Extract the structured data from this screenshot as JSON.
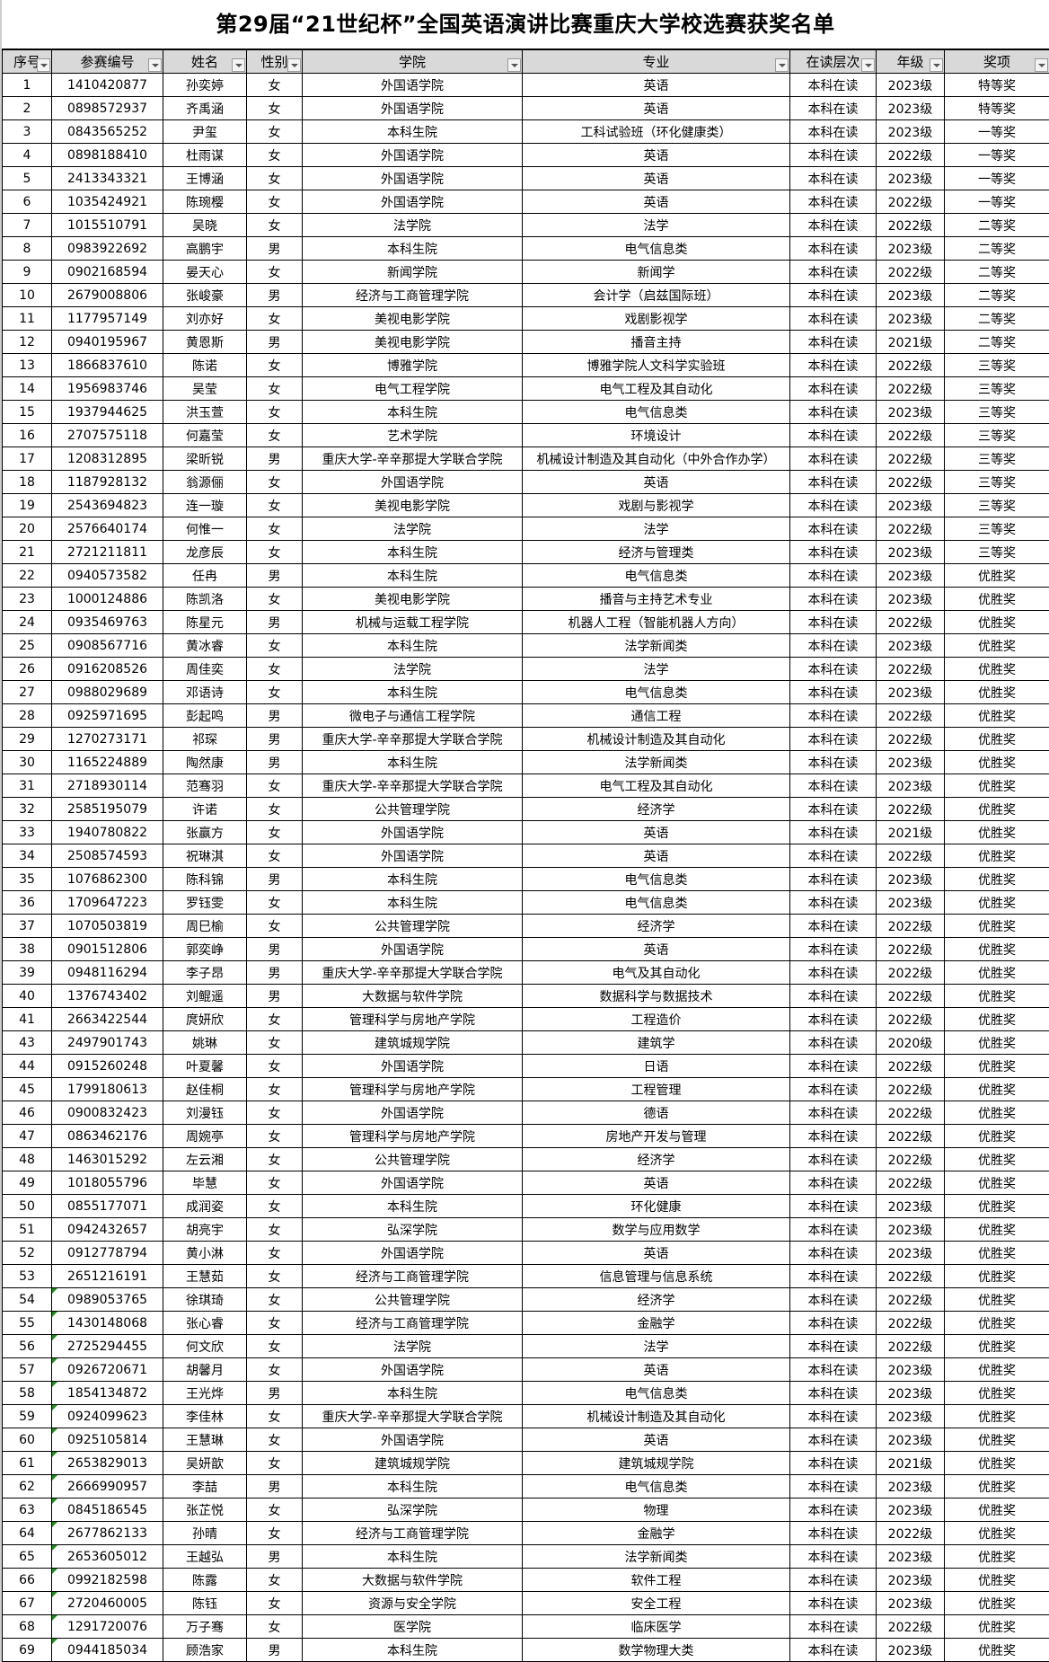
{
  "title": "第29届“21世纪杯”全国英语演讲比赛重庆大学校选赛获奖名单",
  "columns": [
    "序号",
    "参赛编号",
    "姓名",
    "性别",
    "学院",
    "专业",
    "在读层次",
    "年级",
    "奖项"
  ],
  "header_filter_icon": "dropdown-filter-icon",
  "flag_color": "#1a8f1a",
  "flagged_from_seq": "54",
  "rows": [
    [
      "1",
      "1410420877",
      "孙奕婷",
      "女",
      "外国语学院",
      "英语",
      "本科在读",
      "2023级",
      "特等奖"
    ],
    [
      "2",
      "0898572937",
      "齐禹涵",
      "女",
      "外国语学院",
      "英语",
      "本科在读",
      "2023级",
      "特等奖"
    ],
    [
      "3",
      "0843565252",
      "尹玺",
      "女",
      "本科生院",
      "工科试验班（环化健康类）",
      "本科在读",
      "2023级",
      "一等奖"
    ],
    [
      "4",
      "0898188410",
      "杜雨谋",
      "女",
      "外国语学院",
      "英语",
      "本科在读",
      "2022级",
      "一等奖"
    ],
    [
      "5",
      "2413343321",
      "王博涵",
      "女",
      "外国语学院",
      "英语",
      "本科在读",
      "2023级",
      "一等奖"
    ],
    [
      "6",
      "1035424921",
      "陈琬樱",
      "女",
      "外国语学院",
      "英语",
      "本科在读",
      "2022级",
      "一等奖"
    ],
    [
      "7",
      "1015510791",
      "吴晓",
      "女",
      "法学院",
      "法学",
      "本科在读",
      "2022级",
      "二等奖"
    ],
    [
      "8",
      "0983922692",
      "高鹏宇",
      "男",
      "本科生院",
      "电气信息类",
      "本科在读",
      "2023级",
      "二等奖"
    ],
    [
      "9",
      "0902168594",
      "晏天心",
      "女",
      "新闻学院",
      "新闻学",
      "本科在读",
      "2022级",
      "二等奖"
    ],
    [
      "10",
      "2679008806",
      "张峻豪",
      "男",
      "经济与工商管理学院",
      "会计学（启兹国际班）",
      "本科在读",
      "2023级",
      "二等奖"
    ],
    [
      "11",
      "1177957149",
      "刘亦好",
      "女",
      "美视电影学院",
      "戏剧影视学",
      "本科在读",
      "2023级",
      "二等奖"
    ],
    [
      "12",
      "0940195967",
      "黄恩斯",
      "男",
      "美视电影学院",
      "播音主持",
      "本科在读",
      "2021级",
      "二等奖"
    ],
    [
      "13",
      "1866837610",
      "陈诺",
      "女",
      "博雅学院",
      "博雅学院人文科学实验班",
      "本科在读",
      "2022级",
      "三等奖"
    ],
    [
      "14",
      "1956983746",
      "吴莹",
      "女",
      "电气工程学院",
      "电气工程及其自动化",
      "本科在读",
      "2022级",
      "三等奖"
    ],
    [
      "15",
      "1937944625",
      "洪玉萱",
      "女",
      "本科生院",
      "电气信息类",
      "本科在读",
      "2023级",
      "三等奖"
    ],
    [
      "16",
      "2707575118",
      "何嘉莹",
      "女",
      "艺术学院",
      "环境设计",
      "本科在读",
      "2022级",
      "三等奖"
    ],
    [
      "17",
      "1208312895",
      "梁昕锐",
      "男",
      "重庆大学-辛辛那提大学联合学院",
      "机械设计制造及其自动化（中外合作办学）",
      "本科在读",
      "2022级",
      "三等奖"
    ],
    [
      "18",
      "1187928132",
      "翁源俪",
      "女",
      "外国语学院",
      "英语",
      "本科在读",
      "2022级",
      "三等奖"
    ],
    [
      "19",
      "2543694823",
      "连一璇",
      "女",
      "美视电影学院",
      "戏剧与影视学",
      "本科在读",
      "2023级",
      "三等奖"
    ],
    [
      "20",
      "2576640174",
      "何惟一",
      "女",
      "法学院",
      "法学",
      "本科在读",
      "2022级",
      "三等奖"
    ],
    [
      "21",
      "2721211811",
      "龙彦辰",
      "女",
      "本科生院",
      "经济与管理类",
      "本科在读",
      "2023级",
      "三等奖"
    ],
    [
      "22",
      "0940573582",
      "任冉",
      "男",
      "本科生院",
      "电气信息类",
      "本科在读",
      "2023级",
      "优胜奖"
    ],
    [
      "23",
      "1000124886",
      "陈凯洛",
      "女",
      "美视电影学院",
      "播音与主持艺术专业",
      "本科在读",
      "2023级",
      "优胜奖"
    ],
    [
      "24",
      "0935469763",
      "陈星元",
      "男",
      "机械与运载工程学院",
      "机器人工程（智能机器人方向）",
      "本科在读",
      "2022级",
      "优胜奖"
    ],
    [
      "25",
      "0908567716",
      "黄冰睿",
      "女",
      "本科生院",
      "法学新闻类",
      "本科在读",
      "2023级",
      "优胜奖"
    ],
    [
      "26",
      "0916208526",
      "周佳奕",
      "女",
      "法学院",
      "法学",
      "本科在读",
      "2022级",
      "优胜奖"
    ],
    [
      "27",
      "0988029689",
      "邓语诗",
      "女",
      "本科生院",
      "电气信息类",
      "本科在读",
      "2023级",
      "优胜奖"
    ],
    [
      "28",
      "0925971695",
      "彭起鸣",
      "男",
      "微电子与通信工程学院",
      "通信工程",
      "本科在读",
      "2022级",
      "优胜奖"
    ],
    [
      "29",
      "1270273171",
      "祁琛",
      "男",
      "重庆大学-辛辛那提大学联合学院",
      "机械设计制造及其自动化",
      "本科在读",
      "2022级",
      "优胜奖"
    ],
    [
      "30",
      "1165224889",
      "陶然康",
      "男",
      "本科生院",
      "法学新闻类",
      "本科在读",
      "2023级",
      "优胜奖"
    ],
    [
      "31",
      "2718930114",
      "范骞羽",
      "女",
      "重庆大学-辛辛那提大学联合学院",
      "电气工程及其自动化",
      "本科在读",
      "2023级",
      "优胜奖"
    ],
    [
      "32",
      "2585195079",
      "许诺",
      "女",
      "公共管理学院",
      "经济学",
      "本科在读",
      "2022级",
      "优胜奖"
    ],
    [
      "33",
      "1940780822",
      "张赢方",
      "女",
      "外国语学院",
      "英语",
      "本科在读",
      "2021级",
      "优胜奖"
    ],
    [
      "34",
      "2508574593",
      "祝琳淇",
      "女",
      "外国语学院",
      "英语",
      "本科在读",
      "2022级",
      "优胜奖"
    ],
    [
      "35",
      "1076862300",
      "陈科锦",
      "男",
      "本科生院",
      "电气信息类",
      "本科在读",
      "2023级",
      "优胜奖"
    ],
    [
      "36",
      "1709647223",
      "罗钰雯",
      "女",
      "本科生院",
      "电气信息类",
      "本科在读",
      "2023级",
      "优胜奖"
    ],
    [
      "37",
      "1070503819",
      "周巳榆",
      "女",
      "公共管理学院",
      "经济学",
      "本科在读",
      "2022级",
      "优胜奖"
    ],
    [
      "38",
      "0901512806",
      "郭奕峥",
      "男",
      "外国语学院",
      "英语",
      "本科在读",
      "2022级",
      "优胜奖"
    ],
    [
      "39",
      "0948116294",
      "李子昂",
      "男",
      "重庆大学-辛辛那提大学联合学院",
      "电气及其自动化",
      "本科在读",
      "2022级",
      "优胜奖"
    ],
    [
      "40",
      "1376743402",
      "刘鲲遥",
      "男",
      "大数据与软件学院",
      "数据科学与数据技术",
      "本科在读",
      "2022级",
      "优胜奖"
    ],
    [
      "41",
      "2663422544",
      "庹妍欣",
      "女",
      "管理科学与房地产学院",
      "工程造价",
      "本科在读",
      "2022级",
      "优胜奖"
    ],
    [
      "43",
      "2497901743",
      "姚琳",
      "女",
      "建筑城规学院",
      "建筑学",
      "本科在读",
      "2020级",
      "优胜奖"
    ],
    [
      "44",
      "0915260248",
      "叶夏馨",
      "女",
      "外国语学院",
      "日语",
      "本科在读",
      "2022级",
      "优胜奖"
    ],
    [
      "45",
      "1799180613",
      "赵佳桐",
      "女",
      "管理科学与房地产学院",
      "工程管理",
      "本科在读",
      "2022级",
      "优胜奖"
    ],
    [
      "46",
      "0900832423",
      "刘漫钰",
      "女",
      "外国语学院",
      "德语",
      "本科在读",
      "2022级",
      "优胜奖"
    ],
    [
      "47",
      "0863462176",
      "周婉亭",
      "女",
      "管理科学与房地产学院",
      "房地产开发与管理",
      "本科在读",
      "2022级",
      "优胜奖"
    ],
    [
      "48",
      "1463015292",
      "左云湘",
      "女",
      "公共管理学院",
      "经济学",
      "本科在读",
      "2022级",
      "优胜奖"
    ],
    [
      "49",
      "1018055796",
      "毕慧",
      "女",
      "外国语学院",
      "英语",
      "本科在读",
      "2022级",
      "优胜奖"
    ],
    [
      "50",
      "0855177071",
      "成润姿",
      "女",
      "本科生院",
      "环化健康",
      "本科在读",
      "2023级",
      "优胜奖"
    ],
    [
      "51",
      "0942432657",
      "胡亮宇",
      "女",
      "弘深学院",
      "数学与应用数学",
      "本科在读",
      "2023级",
      "优胜奖"
    ],
    [
      "52",
      "0912778794",
      "黄小淋",
      "女",
      "外国语学院",
      "英语",
      "本科在读",
      "2023级",
      "优胜奖"
    ],
    [
      "53",
      "2651216191",
      "王慧茹",
      "女",
      "经济与工商管理学院",
      "信息管理与信息系统",
      "本科在读",
      "2022级",
      "优胜奖"
    ],
    [
      "54",
      "0989053765",
      "徐琪琦",
      "女",
      "公共管理学院",
      "经济学",
      "本科在读",
      "2022级",
      "优胜奖"
    ],
    [
      "55",
      "1430148068",
      "张心睿",
      "女",
      "经济与工商管理学院",
      "金融学",
      "本科在读",
      "2022级",
      "优胜奖"
    ],
    [
      "56",
      "2725294455",
      "何文欣",
      "女",
      "法学院",
      "法学",
      "本科在读",
      "2022级",
      "优胜奖"
    ],
    [
      "57",
      "0926720671",
      "胡馨月",
      "女",
      "外国语学院",
      "英语",
      "本科在读",
      "2023级",
      "优胜奖"
    ],
    [
      "58",
      "1854134872",
      "王光烨",
      "男",
      "本科生院",
      "电气信息类",
      "本科在读",
      "2023级",
      "优胜奖"
    ],
    [
      "59",
      "0924099623",
      "李佳林",
      "女",
      "重庆大学-辛辛那提大学联合学院",
      "机械设计制造及其自动化",
      "本科在读",
      "2023级",
      "优胜奖"
    ],
    [
      "60",
      "0925105814",
      "王慧琳",
      "女",
      "外国语学院",
      "英语",
      "本科在读",
      "2023级",
      "优胜奖"
    ],
    [
      "61",
      "2653829013",
      "吴妍歆",
      "女",
      "建筑城规学院",
      "建筑城规学院",
      "本科在读",
      "2021级",
      "优胜奖"
    ],
    [
      "62",
      "2666990957",
      "李喆",
      "男",
      "本科生院",
      "电气信息类",
      "本科在读",
      "2023级",
      "优胜奖"
    ],
    [
      "63",
      "0845186545",
      "张芷悦",
      "女",
      "弘深学院",
      "物理",
      "本科在读",
      "2023级",
      "优胜奖"
    ],
    [
      "64",
      "2677862133",
      "孙晴",
      "女",
      "经济与工商管理学院",
      "金融学",
      "本科在读",
      "2022级",
      "优胜奖"
    ],
    [
      "65",
      "2653605012",
      "王越弘",
      "男",
      "本科生院",
      "法学新闻类",
      "本科在读",
      "2023级",
      "优胜奖"
    ],
    [
      "66",
      "0992182598",
      "陈露",
      "女",
      "大数据与软件学院",
      "软件工程",
      "本科在读",
      "2023级",
      "优胜奖"
    ],
    [
      "67",
      "2720460005",
      "陈钰",
      "女",
      "资源与安全学院",
      "安全工程",
      "本科在读",
      "2023级",
      "优胜奖"
    ],
    [
      "68",
      "1291720076",
      "万子骞",
      "女",
      "医学院",
      "临床医学",
      "本科在读",
      "2022级",
      "优胜奖"
    ],
    [
      "69",
      "0944185034",
      "顾浩家",
      "男",
      "本科生院",
      "数学物理大类",
      "本科在读",
      "2023级",
      "优胜奖"
    ]
  ]
}
